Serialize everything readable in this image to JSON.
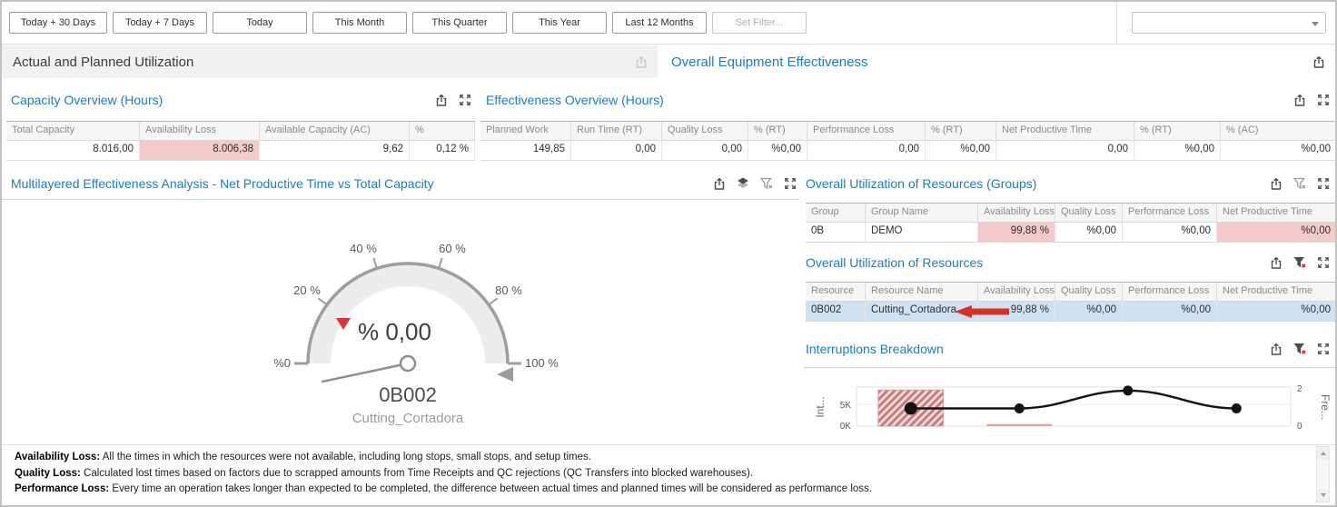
{
  "toolbar": {
    "buttons": [
      "Today + 30 Days",
      "Today + 7 Days",
      "Today",
      "This Month",
      "This Quarter",
      "This Year",
      "Last 12 Months"
    ],
    "set_filter_label": "Set Filter...",
    "dropdown_value": ""
  },
  "panels": {
    "left_header": "Actual and Planned Utilization",
    "right_header": "Overall Equipment Effectiveness"
  },
  "capacity_overview": {
    "title": "Capacity Overview (Hours)",
    "columns": [
      "Total Capacity",
      "Availability Loss",
      "Available Capacity (AC)",
      "%"
    ],
    "row": [
      "8.016,00",
      "8.006,38",
      "9,62",
      "0,12 %"
    ],
    "align": [
      "r",
      "r",
      "r",
      "r"
    ],
    "highlight": [
      1
    ]
  },
  "effectiveness_overview": {
    "title": "Effectiveness Overview (Hours)",
    "columns": [
      "Planned Work",
      "Run Time (RT)",
      "Quality Loss",
      "% (RT)",
      "Performance Loss",
      "% (RT)",
      "Net Productive Time",
      "% (RT)",
      "% (AC)"
    ],
    "row": [
      "149,85",
      "0,00",
      "0,00",
      "%0,00",
      "0,00",
      "%0,00",
      "0,00",
      "%0,00",
      "%0,00"
    ],
    "align": [
      "r",
      "r",
      "r",
      "r",
      "r",
      "r",
      "r",
      "r",
      "r"
    ],
    "highlight": []
  },
  "multilayered": {
    "title": "Multilayered Effectiveness Analysis - Net Productive Time vs Total Capacity",
    "gauge": {
      "ticks": [
        "%0",
        "20 %",
        "40 %",
        "60 %",
        "80 %",
        "100 %"
      ],
      "value_label": "% 0,00",
      "resource": "0B002",
      "resource_name": "Cutting_Cortadora"
    }
  },
  "groups_table": {
    "title": "Overall Utilization of Resources (Groups)",
    "columns": [
      "Group",
      "Group Name",
      "Availability Loss",
      "Quality Loss",
      "Performance Loss",
      "Net Productive Time"
    ],
    "row": [
      "0B",
      "DEMO",
      "99,88 %",
      "%0,00",
      "%0,00",
      "%0,00"
    ],
    "align": [
      "l",
      "l",
      "r",
      "r",
      "r",
      "r"
    ],
    "highlight": [
      2,
      5
    ]
  },
  "resources_table": {
    "title": "Overall Utilization of Resources",
    "columns": [
      "Resource",
      "Resource Name",
      "Availability Loss",
      "Quality Loss",
      "Performance Loss",
      "Net Productive Time"
    ],
    "row": [
      "0B002",
      "Cutting_Cortadora",
      "99,88 %",
      "%0,00",
      "%0,00",
      "%0,00"
    ],
    "align": [
      "l",
      "l",
      "r",
      "r",
      "r",
      "r"
    ],
    "highlight": [],
    "selected": true
  },
  "interruptions": {
    "title": "Interruptions Breakdown",
    "left_axis_label": "Int...",
    "right_axis_label": "Fre...",
    "left_ticks": [
      "5K",
      "0K"
    ],
    "right_ticks": [
      "2",
      "0"
    ]
  },
  "footer_notes": [
    {
      "label": "Availability Loss:",
      "text": " All the times in which the resources were not available, including long stops, small stops, and setup times."
    },
    {
      "label": "Quality Loss:",
      "text": " Calculated lost times based on factors due to scrapped amounts from Time Receipts and QC rejections (QC Transfers into blocked warehouses)."
    },
    {
      "label": "Performance Loss:",
      "text": " Every time an operation takes longer than expected to be completed, the difference between actual times and planned times will be considered as performance loss."
    }
  ],
  "colors": {
    "accent_blue": "#1c7cc5",
    "loss_pink": "#f5caca",
    "selected_row_blue": "#cfe2f4",
    "annotation_red": "#d93025"
  },
  "chart_data": [
    {
      "type": "gauge",
      "title": "Multilayered Effectiveness Analysis - Net Productive Time vs Total Capacity",
      "value_percent": 0,
      "value_label": "% 0,00",
      "axis_ticks_percent": [
        0,
        20,
        40,
        60,
        80,
        100
      ],
      "tick_labels": [
        "%0",
        "20 %",
        "40 %",
        "60 %",
        "80 %",
        "100 %"
      ],
      "resource": "0B002",
      "resource_name": "Cutting_Cortadora"
    },
    {
      "type": "bar+line",
      "title": "Interruptions Breakdown",
      "x": [
        1,
        2,
        3,
        4
      ],
      "series": [
        {
          "name": "Interruption Time (hours, left axis)",
          "type": "bar",
          "values": [
            8500,
            500,
            0,
            0
          ],
          "styles": [
            "hatched",
            "solid",
            "none",
            "none"
          ]
        },
        {
          "name": "Frequency (right axis)",
          "type": "line",
          "values": [
            1,
            1,
            2,
            1
          ]
        }
      ],
      "left_axis": {
        "label": "Int...",
        "ticks": [
          "0K",
          "5K"
        ],
        "range": [
          0,
          9200
        ]
      },
      "right_axis": {
        "label": "Fre...",
        "ticks": [
          0,
          2
        ],
        "range": [
          0,
          2.2
        ]
      },
      "grid": true,
      "legend": "none"
    }
  ]
}
